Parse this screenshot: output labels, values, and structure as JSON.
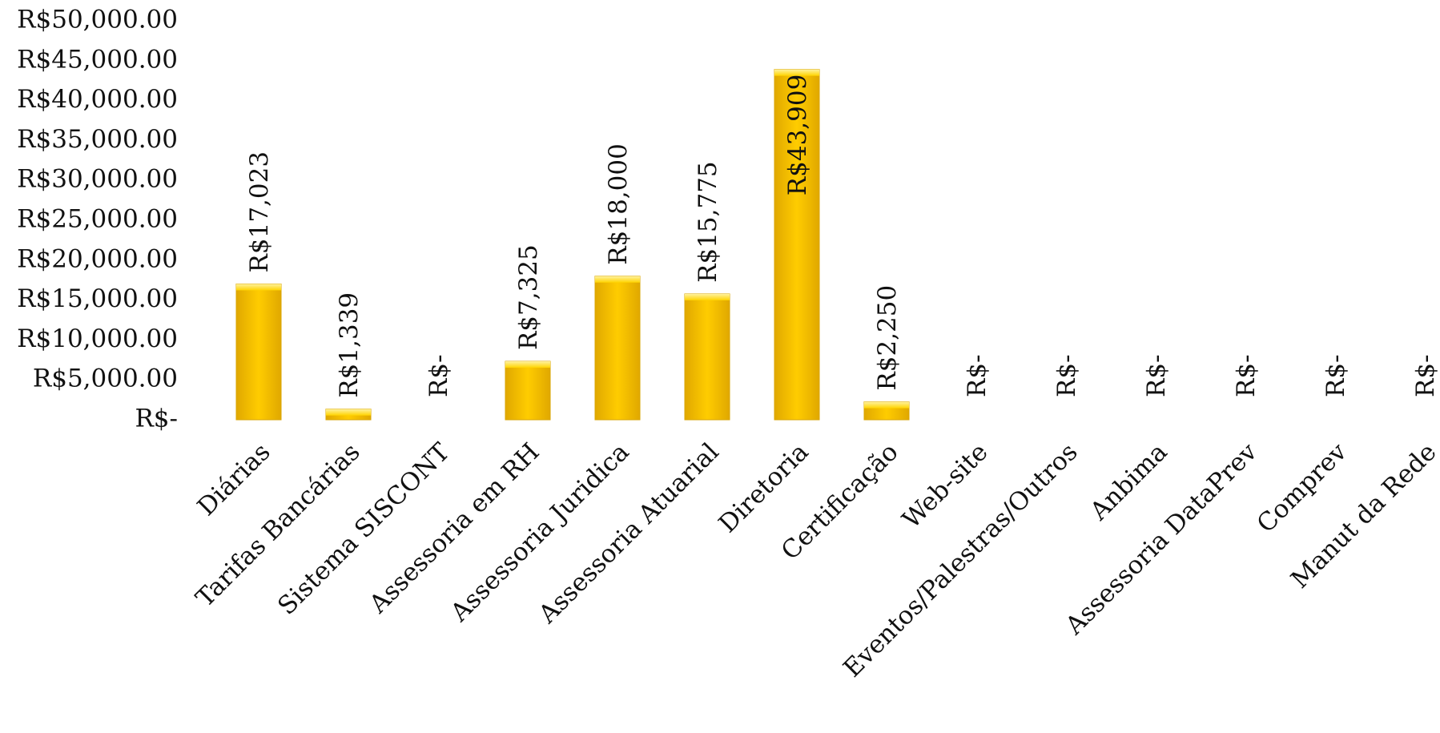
{
  "chart_data": {
    "type": "bar",
    "title": "",
    "xlabel": "",
    "ylabel": "",
    "ylim": [
      0,
      50000
    ],
    "yticks": [
      0,
      5000,
      10000,
      15000,
      20000,
      25000,
      30000,
      35000,
      40000,
      45000,
      50000
    ],
    "ytick_labels": [
      "R$-",
      "R$5,000.00",
      "R$10,000.00",
      "R$15,000.00",
      "R$20,000.00",
      "R$25,000.00",
      "R$30,000.00",
      "R$35,000.00",
      "R$40,000.00",
      "R$45,000.00",
      "R$50,000.00"
    ],
    "categories": [
      "Diárias",
      "Tarifas Bancárias",
      "Sistema SISCONT",
      "Assessoria em RH",
      "Assessoria  Juridica",
      "Assessoria Atuarial",
      "Diretoria",
      "Certificação",
      "Web-site",
      "Eventos/Palestras/Outros",
      "Anbima",
      "Assessoria DataPrev",
      "Comprev",
      "Manut da Rede"
    ],
    "values": [
      17023,
      1339,
      0,
      7325,
      18000,
      15775,
      43909,
      2250,
      0,
      0,
      0,
      0,
      0,
      0
    ],
    "data_labels": [
      "R$17,023",
      "R$1,339",
      "R$-",
      "R$7,325",
      "R$18,000",
      "R$15,775",
      "R$43,909",
      "R$2,250",
      "R$-",
      "R$-",
      "R$-",
      "R$-",
      "R$-",
      "R$-"
    ],
    "grid": false,
    "legend": "none",
    "colors": {
      "bar": "#f5c000",
      "bar_highlight": "#ffe066",
      "bar_edge": "#d9a400"
    }
  }
}
